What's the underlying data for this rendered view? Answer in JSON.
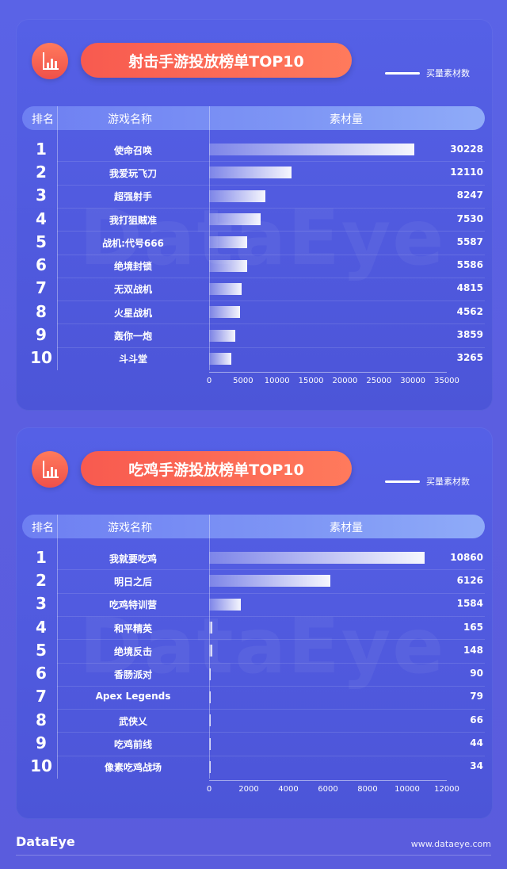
{
  "watermark": "DataEye",
  "footer": {
    "brand": "DataEye",
    "url": "www.dataeye.com"
  },
  "table_headers": {
    "rank": "排名",
    "name": "游戏名称",
    "value": "素材量"
  },
  "legend_label": "买量素材数",
  "colors": {
    "background": "#5a5ee0",
    "accent": "#f85a4f",
    "header": "#7e96f5",
    "bar": "#ffffff"
  },
  "icon": "bar-chart-icon",
  "chart_data": [
    {
      "type": "bar",
      "orientation": "horizontal",
      "title": "射击手游投放榜单TOP10",
      "legend": "买量素材数",
      "ranks": [
        "1",
        "2",
        "3",
        "4",
        "5",
        "6",
        "7",
        "8",
        "9",
        "10"
      ],
      "categories": [
        "使命召唤",
        "我爱玩飞刀",
        "超强射手",
        "我打狙贼准",
        "战机:代号666",
        "绝境封锁",
        "无双战机",
        "火星战机",
        "轰你一炮",
        "斗斗堂"
      ],
      "values": [
        30228,
        12110,
        8247,
        7530,
        5587,
        5586,
        4815,
        4562,
        3859,
        3265
      ],
      "value_labels": [
        "30228",
        "12110",
        "8247",
        "7530",
        "5587",
        "5586",
        "4815",
        "4562",
        "3859",
        "3265"
      ],
      "xlim": [
        0,
        35000
      ],
      "xticks": [
        "0",
        "5000",
        "10000",
        "15000",
        "20000",
        "25000",
        "30000",
        "35000"
      ]
    },
    {
      "type": "bar",
      "orientation": "horizontal",
      "title": "吃鸡手游投放榜单TOP10",
      "legend": "买量素材数",
      "ranks": [
        "1",
        "2",
        "3",
        "4",
        "5",
        "6",
        "7",
        "8",
        "9",
        "10"
      ],
      "categories": [
        "我就要吃鸡",
        "明日之后",
        "吃鸡特训营",
        "和平精英",
        "绝境反击",
        "香肠派对",
        "Apex Legends",
        "武侠乂",
        "吃鸡前线",
        "像素吃鸡战场"
      ],
      "values": [
        10860,
        6126,
        1584,
        165,
        148,
        90,
        79,
        66,
        44,
        34
      ],
      "value_labels": [
        "10860",
        "6126",
        "1584",
        "165",
        "148",
        "90",
        "79",
        "66",
        "44",
        "34"
      ],
      "xlim": [
        0,
        12000
      ],
      "xticks": [
        "0",
        "2000",
        "4000",
        "6000",
        "8000",
        "10000",
        "12000"
      ]
    }
  ]
}
